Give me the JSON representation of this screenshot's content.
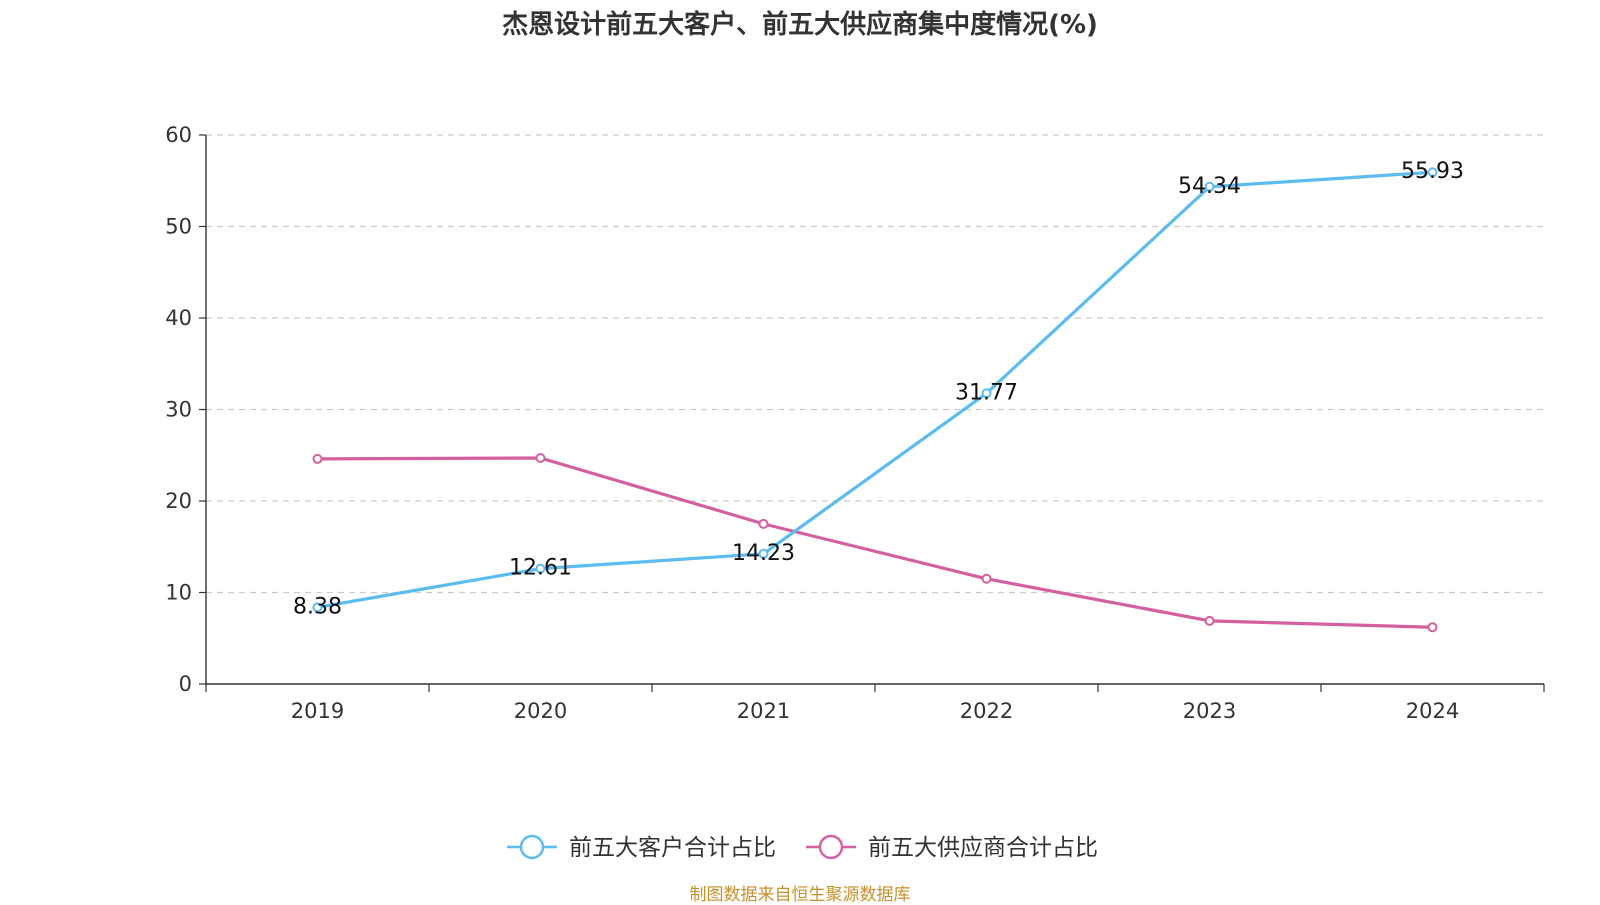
{
  "chart_data": {
    "type": "line",
    "title": "杰恩设计前五大客户、前五大供应商集中度情况(%)",
    "categories": [
      "2019",
      "2020",
      "2021",
      "2022",
      "2023",
      "2024"
    ],
    "ylim": [
      0,
      60
    ],
    "yticks": [
      0,
      10,
      20,
      30,
      40,
      50,
      60
    ],
    "grid": true,
    "legend_position": "bottom-center",
    "series": [
      {
        "name": "前五大客户合计占比",
        "color": "#5bbcf0",
        "values": [
          8.38,
          12.61,
          14.23,
          31.77,
          54.34,
          55.93
        ],
        "labels": [
          "8.38",
          "12.61",
          "14.23",
          "31.77",
          "54.34",
          "55.93"
        ]
      },
      {
        "name": "前五大供应商合计占比",
        "color": "#d4609f",
        "values": [
          24.6,
          24.7,
          17.5,
          11.5,
          6.9,
          6.2
        ]
      }
    ]
  },
  "source": "制图数据来自恒生聚源数据库"
}
